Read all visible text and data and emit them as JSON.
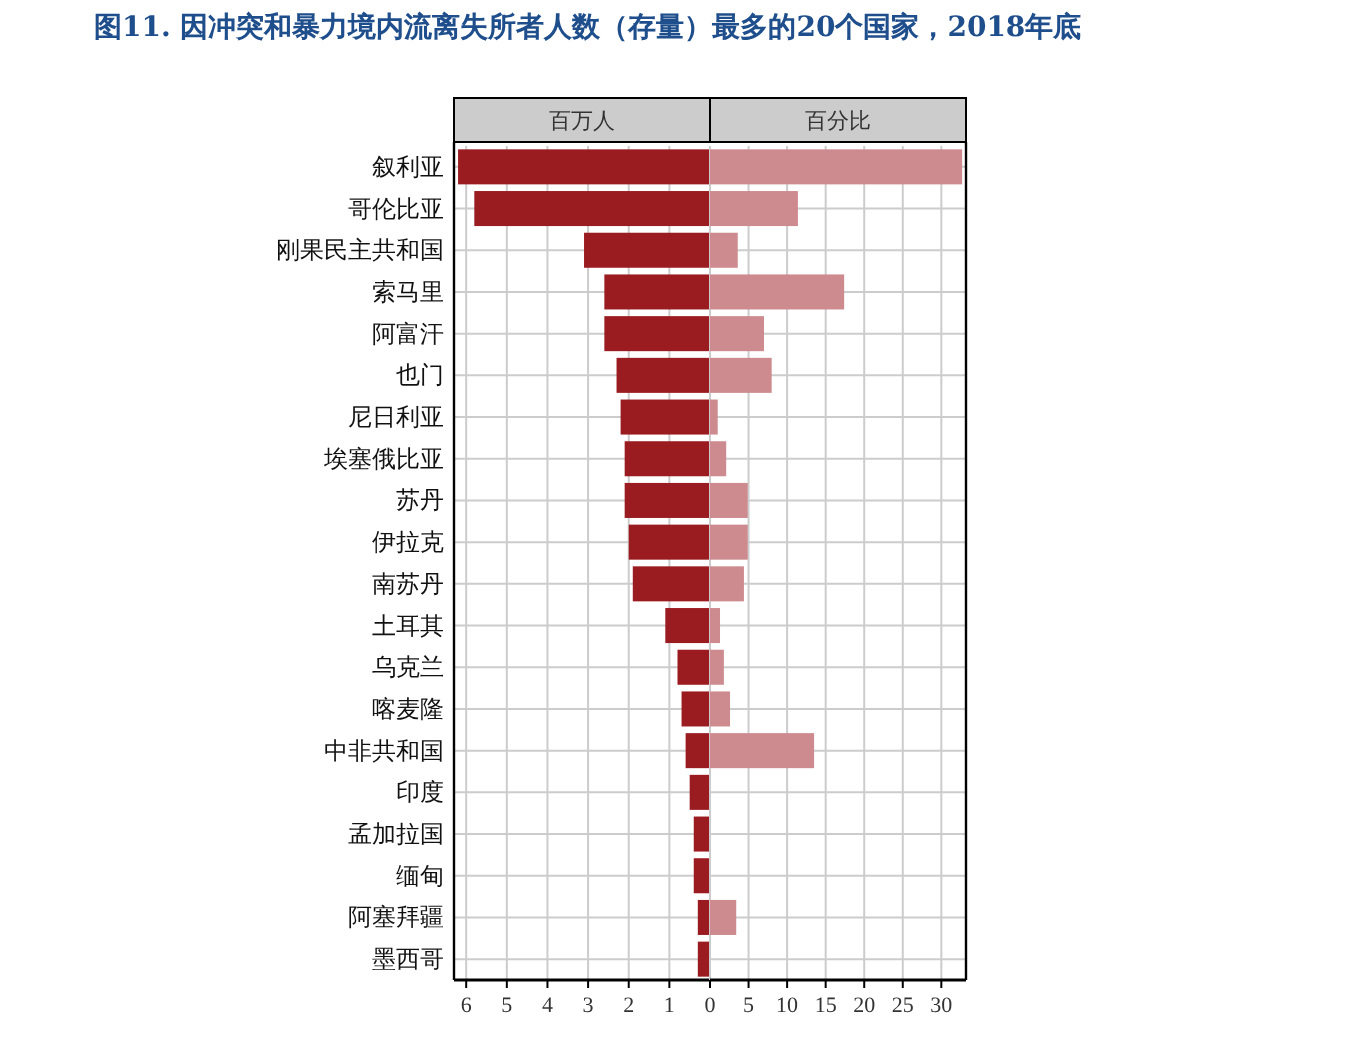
{
  "chart_data": [
    {
      "type": "bar",
      "orientation": "horizontal",
      "title": "图11.  因冲突和暴力境内流离失所者人数（存量）最多的20个国家，2018年底",
      "xlabel": "百万人",
      "categories": [
        "叙利亚",
        "哥伦比亚",
        "刚果民主共和国",
        "索马里",
        "阿富汗",
        "也门",
        "尼日利亚",
        "埃塞俄比亚",
        "苏丹",
        "伊拉克",
        "南苏丹",
        "土耳其",
        "乌克兰",
        "喀麦隆",
        "中非共和国",
        "印度",
        "孟加拉国",
        "缅甸",
        "阿塞拜疆",
        "墨西哥"
      ],
      "values": [
        6.2,
        5.8,
        3.1,
        2.6,
        2.6,
        2.3,
        2.2,
        2.1,
        2.1,
        2.0,
        1.9,
        1.1,
        0.8,
        0.7,
        0.6,
        0.5,
        0.4,
        0.4,
        0.3,
        0.3
      ],
      "color": "#9b1c20",
      "xlim": [
        6.3,
        0
      ],
      "xticks": [
        6,
        5,
        4,
        3,
        2,
        1,
        0
      ],
      "grid": true
    },
    {
      "type": "bar",
      "orientation": "horizontal",
      "xlabel": "百分比",
      "categories": [
        null,
        null,
        null,
        null,
        null,
        null,
        null,
        null,
        null,
        null,
        null,
        null,
        null,
        null,
        null,
        null,
        null,
        null,
        null,
        null
      ],
      "values": [
        32.7,
        11.4,
        3.6,
        17.4,
        7.0,
        8.0,
        1.0,
        2.1,
        4.9,
        4.9,
        4.4,
        1.3,
        1.8,
        2.6,
        13.5,
        0,
        0,
        0,
        3.4,
        0
      ],
      "color": "#cd8b8f",
      "xlim": [
        0,
        33.2
      ],
      "xticks": [
        {
          "value": 0,
          "label": null
        },
        5,
        10,
        15,
        20,
        25,
        30
      ],
      "grid": true,
      "tick_labels": "x"
    }
  ]
}
